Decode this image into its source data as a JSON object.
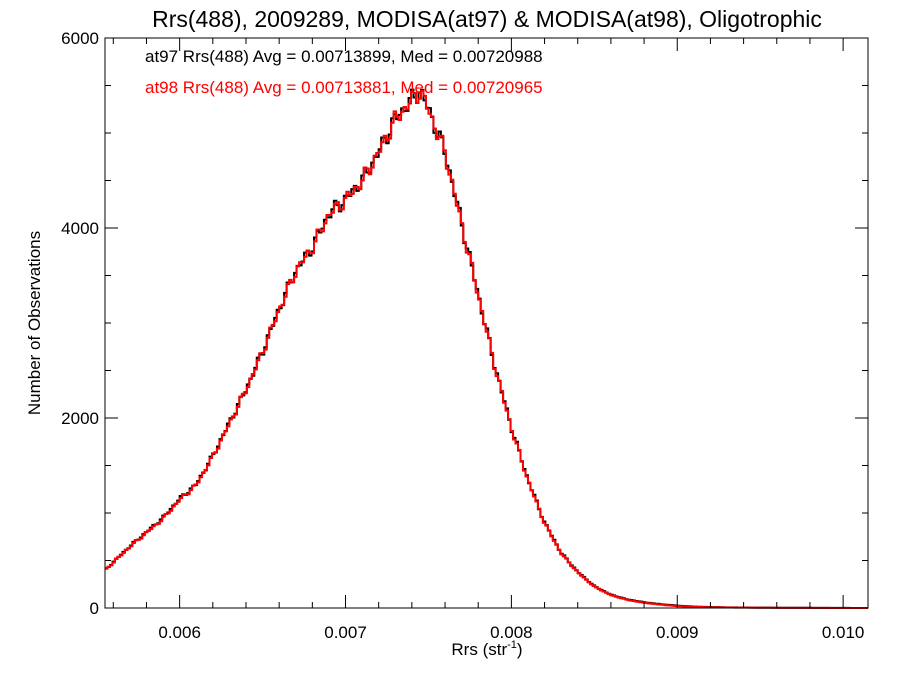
{
  "chart_data": {
    "type": "line",
    "title": "Rrs(488), 2009289, MODISA(at97) & MODISA(at98), Oligotrophic",
    "xlabel_main": "Rrs (str",
    "xlabel_sup": "-1",
    "xlabel_close": ")",
    "ylabel": "Number of Observations",
    "xlim": [
      0.00555,
      0.01015
    ],
    "ylim": [
      0,
      6000
    ],
    "x_ticks": [
      {
        "value": 0.006,
        "label": "0.006"
      },
      {
        "value": 0.007,
        "label": "0.007"
      },
      {
        "value": 0.008,
        "label": "0.008"
      },
      {
        "value": 0.009,
        "label": "0.009"
      },
      {
        "value": 0.01,
        "label": "0.010"
      }
    ],
    "y_ticks": [
      {
        "value": 0,
        "label": "0"
      },
      {
        "value": 2000,
        "label": "2000"
      },
      {
        "value": 4000,
        "label": "4000"
      },
      {
        "value": 6000,
        "label": "6000"
      }
    ],
    "x_minor_step": 0.0002,
    "y_minor_step": 500,
    "grid": false,
    "legend": "top-left",
    "annotations": [
      {
        "text": "at97 Rrs(488) Avg = 0.00713899, Med = 0.00720988",
        "color": "#000000"
      },
      {
        "text": "at98 Rrs(488) Avg = 0.00713881, Med = 0.00720965",
        "color": "#ff0000"
      }
    ],
    "series": [
      {
        "color": "#000000",
        "x": [
          0.00555,
          0.0057,
          0.0059,
          0.006,
          0.0061,
          0.0062,
          0.0063,
          0.0064,
          0.0065,
          0.0066,
          0.0067,
          0.0068,
          0.0069,
          0.007,
          0.0071,
          0.0072,
          0.0073,
          0.0074,
          0.00745,
          0.0075,
          0.0076,
          0.0077,
          0.0078,
          0.0079,
          0.008,
          0.0081,
          0.0082,
          0.0083,
          0.0084,
          0.0085,
          0.0086,
          0.0087,
          0.0088,
          0.0089,
          0.009,
          0.0091,
          0.0092,
          0.0093,
          0.0094,
          0.0095,
          0.0096,
          0.0098,
          0.01015
        ],
        "y": [
          400,
          650,
          950,
          1150,
          1300,
          1600,
          1950,
          2300,
          2700,
          3150,
          3550,
          3800,
          4150,
          4300,
          4500,
          4800,
          5150,
          5350,
          5450,
          5250,
          4800,
          4050,
          3300,
          2550,
          1900,
          1350,
          900,
          580,
          380,
          230,
          140,
          90,
          60,
          40,
          25,
          15,
          10,
          7,
          5,
          4,
          3,
          2,
          0
        ]
      },
      {
        "color": "#ff0000",
        "x": [
          0.00555,
          0.0057,
          0.0059,
          0.006,
          0.0061,
          0.0062,
          0.0063,
          0.0064,
          0.0065,
          0.0066,
          0.0067,
          0.0068,
          0.0069,
          0.007,
          0.0071,
          0.0072,
          0.0073,
          0.0074,
          0.00745,
          0.0075,
          0.0076,
          0.0077,
          0.0078,
          0.0079,
          0.008,
          0.0081,
          0.0082,
          0.0083,
          0.0084,
          0.0085,
          0.0086,
          0.0087,
          0.0088,
          0.0089,
          0.009,
          0.0091,
          0.0092,
          0.0093,
          0.0094,
          0.0095,
          0.0096,
          0.0098,
          0.01015
        ],
        "y": [
          395,
          645,
          940,
          1140,
          1295,
          1595,
          1940,
          2295,
          2695,
          3140,
          3545,
          3795,
          4145,
          4295,
          4495,
          4795,
          5140,
          5345,
          5440,
          5245,
          4795,
          4040,
          3295,
          2545,
          1895,
          1345,
          895,
          575,
          375,
          225,
          135,
          85,
          55,
          35,
          20,
          12,
          8,
          5,
          4,
          3,
          2,
          1,
          0
        ]
      }
    ]
  }
}
